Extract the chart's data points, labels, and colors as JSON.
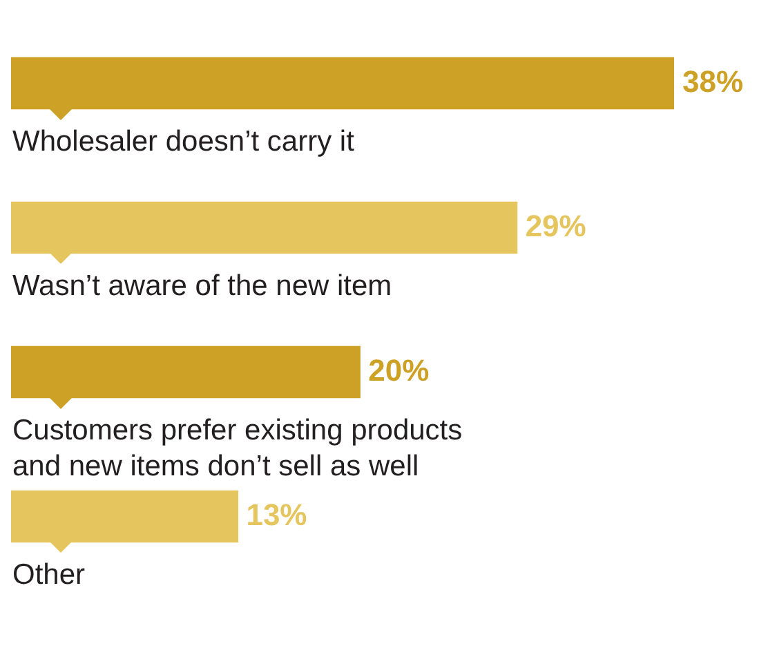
{
  "chart_data": {
    "type": "bar",
    "orientation": "horizontal",
    "categories": [
      "Wholesaler doesn’t carry it",
      "Wasn’t aware of the new item",
      "Customers prefer existing products and new items don’t sell as well",
      "Other"
    ],
    "values": [
      38,
      29,
      20,
      13
    ],
    "colors": [
      "#cda125",
      "#e5c55e",
      "#cda125",
      "#e5c55e"
    ],
    "value_labels": [
      "38%",
      "29%",
      "20%",
      "13%"
    ],
    "tick_labels": false
  }
}
